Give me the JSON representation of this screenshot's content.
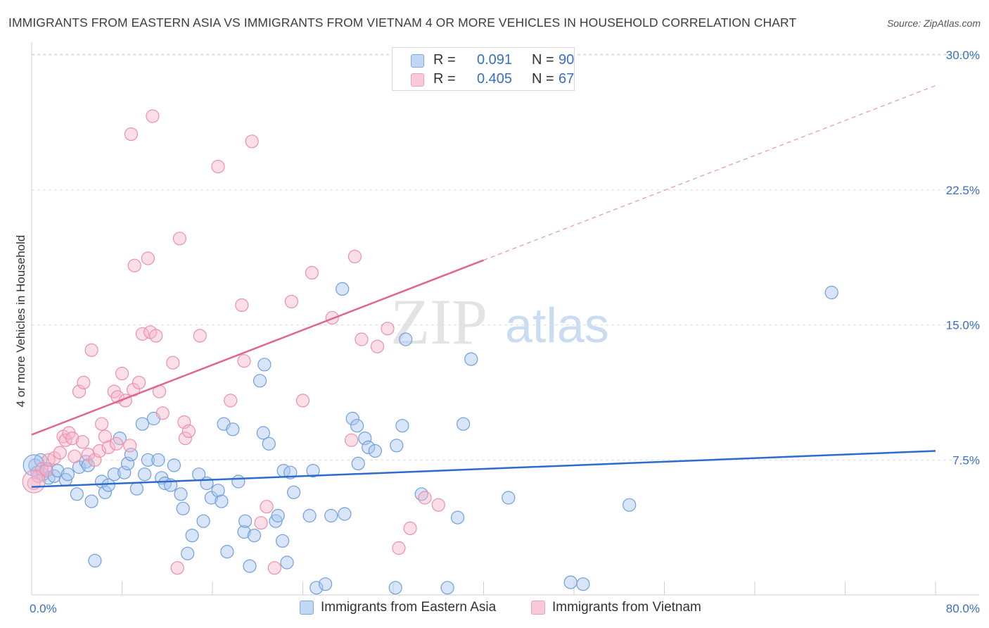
{
  "title": "IMMIGRANTS FROM EASTERN ASIA VS IMMIGRANTS FROM VIETNAM 4 OR MORE VEHICLES IN HOUSEHOLD CORRELATION CHART",
  "source": "Source: ZipAtlas.com",
  "watermark": {
    "zip": "ZIP",
    "atlas": "atlas"
  },
  "legend": {
    "rows": [
      {
        "r_label": "R =",
        "r_value": "0.091",
        "n_label": "N =",
        "n_value": "90",
        "color": "#a9c6f0"
      },
      {
        "r_label": "R =",
        "r_value": "0.405",
        "n_label": "N =",
        "n_value": "67",
        "color": "#f6b6c8"
      }
    ]
  },
  "bottom_legend": [
    {
      "label": "Immigrants from Eastern Asia",
      "color": "#a9c6f0"
    },
    {
      "label": "Immigrants from Vietnam",
      "color": "#f6b6c8"
    }
  ],
  "chart_data": {
    "type": "scatter",
    "title": "IMMIGRANTS FROM EASTERN ASIA VS IMMIGRANTS FROM VIETNAM 4 OR MORE VEHICLES IN HOUSEHOLD CORRELATION CHART",
    "xlabel": "",
    "ylabel": "4 or more Vehicles in Household",
    "xlim": [
      0,
      80
    ],
    "ylim": [
      0,
      30
    ],
    "x_tick_labels": [
      "0.0%",
      "80.0%"
    ],
    "y_tick_labels": [
      "7.5%",
      "15.0%",
      "22.5%",
      "30.0%"
    ],
    "y_ticks": [
      7.5,
      15,
      22.5,
      30
    ],
    "grid": "horizontal dashed",
    "legend_position": "top-center",
    "series": [
      {
        "name": "Immigrants from Eastern Asia",
        "color": "#6f9fe0",
        "fill": "#a9c6f0",
        "trend": {
          "x": [
            0,
            80
          ],
          "y": [
            6.0,
            8.0
          ],
          "color": "#2b6ccc"
        },
        "points": [
          [
            0.3,
            7.2
          ],
          [
            0.5,
            6.8
          ],
          [
            0.8,
            7.5
          ],
          [
            1.0,
            6.7
          ],
          [
            1.3,
            7.0
          ],
          [
            1.5,
            6.5
          ],
          [
            2.0,
            6.6
          ],
          [
            2.3,
            6.9
          ],
          [
            3.0,
            6.4
          ],
          [
            3.2,
            6.7
          ],
          [
            4.0,
            5.6
          ],
          [
            4.2,
            7.1
          ],
          [
            4.8,
            7.4
          ],
          [
            5.0,
            7.2
          ],
          [
            5.3,
            5.2
          ],
          [
            5.6,
            1.9
          ],
          [
            6.2,
            6.3
          ],
          [
            6.5,
            5.7
          ],
          [
            6.8,
            6.1
          ],
          [
            7.3,
            6.7
          ],
          [
            7.8,
            8.7
          ],
          [
            8.2,
            6.8
          ],
          [
            8.5,
            7.3
          ],
          [
            8.8,
            7.8
          ],
          [
            9.3,
            5.9
          ],
          [
            9.8,
            9.5
          ],
          [
            10.0,
            6.7
          ],
          [
            10.3,
            7.5
          ],
          [
            10.8,
            9.8
          ],
          [
            11.2,
            7.5
          ],
          [
            11.5,
            6.5
          ],
          [
            11.8,
            6.2
          ],
          [
            12.3,
            6.1
          ],
          [
            12.6,
            7.2
          ],
          [
            13.2,
            5.6
          ],
          [
            13.4,
            4.8
          ],
          [
            13.8,
            2.3
          ],
          [
            14.2,
            3.3
          ],
          [
            14.8,
            6.7
          ],
          [
            15.2,
            4.1
          ],
          [
            15.5,
            6.2
          ],
          [
            15.9,
            5.4
          ],
          [
            16.5,
            5.8
          ],
          [
            16.8,
            5.2
          ],
          [
            17.0,
            9.5
          ],
          [
            17.3,
            2.4
          ],
          [
            17.8,
            9.2
          ],
          [
            18.3,
            6.3
          ],
          [
            18.8,
            3.5
          ],
          [
            18.9,
            4.1
          ],
          [
            19.3,
            1.6
          ],
          [
            19.7,
            3.3
          ],
          [
            20.2,
            11.9
          ],
          [
            20.5,
            9.0
          ],
          [
            20.6,
            12.8
          ],
          [
            21.0,
            8.4
          ],
          [
            21.6,
            4.1
          ],
          [
            21.8,
            4.4
          ],
          [
            22.2,
            3.0
          ],
          [
            22.3,
            6.9
          ],
          [
            22.6,
            1.8
          ],
          [
            22.9,
            6.8
          ],
          [
            23.2,
            5.7
          ],
          [
            24.6,
            4.4
          ],
          [
            24.9,
            6.9
          ],
          [
            25.2,
            0.4
          ],
          [
            26.0,
            0.6
          ],
          [
            26.5,
            4.4
          ],
          [
            27.5,
            17.0
          ],
          [
            27.7,
            4.5
          ],
          [
            28.4,
            9.8
          ],
          [
            28.8,
            9.4
          ],
          [
            28.9,
            7.3
          ],
          [
            29.5,
            8.7
          ],
          [
            29.8,
            8.2
          ],
          [
            30.4,
            8.0
          ],
          [
            32.2,
            0.4
          ],
          [
            32.3,
            8.3
          ],
          [
            32.8,
            9.4
          ],
          [
            33.1,
            14.2
          ],
          [
            34.5,
            5.6
          ],
          [
            36.8,
            0.4
          ],
          [
            37.7,
            4.3
          ],
          [
            38.2,
            9.5
          ],
          [
            38.9,
            13.1
          ],
          [
            42.2,
            5.4
          ],
          [
            47.7,
            0.7
          ],
          [
            48.8,
            0.6
          ],
          [
            52.9,
            5.0
          ],
          [
            70.8,
            16.8
          ]
        ]
      },
      {
        "name": "Immigrants from Vietnam",
        "color": "#ec8fac",
        "fill": "#f6b6c8",
        "trend": {
          "x": [
            0,
            40
          ],
          "y": [
            8.9,
            18.6
          ],
          "color": "#e0648c"
        },
        "trend_extension": {
          "x": [
            40,
            80
          ],
          "y": [
            18.6,
            28.3
          ]
        },
        "points": [
          [
            0.2,
            6.2
          ],
          [
            0.6,
            6.6
          ],
          [
            0.9,
            7.0
          ],
          [
            1.3,
            6.9
          ],
          [
            1.5,
            7.5
          ],
          [
            2.0,
            7.6
          ],
          [
            2.5,
            7.9
          ],
          [
            2.8,
            8.8
          ],
          [
            3.0,
            8.6
          ],
          [
            3.3,
            9.0
          ],
          [
            3.6,
            8.7
          ],
          [
            3.8,
            7.7
          ],
          [
            4.2,
            11.3
          ],
          [
            4.5,
            8.5
          ],
          [
            4.6,
            11.8
          ],
          [
            5.0,
            7.8
          ],
          [
            5.3,
            13.6
          ],
          [
            5.6,
            7.5
          ],
          [
            6.0,
            8.0
          ],
          [
            6.2,
            9.5
          ],
          [
            6.5,
            8.8
          ],
          [
            6.8,
            8.2
          ],
          [
            7.3,
            11.3
          ],
          [
            7.5,
            8.4
          ],
          [
            7.6,
            11.0
          ],
          [
            8.0,
            12.3
          ],
          [
            8.3,
            10.8
          ],
          [
            8.7,
            8.3
          ],
          [
            8.8,
            25.6
          ],
          [
            9.0,
            11.4
          ],
          [
            9.1,
            18.3
          ],
          [
            9.5,
            11.8
          ],
          [
            9.8,
            14.5
          ],
          [
            10.3,
            18.7
          ],
          [
            10.5,
            14.6
          ],
          [
            10.7,
            26.6
          ],
          [
            11.0,
            14.4
          ],
          [
            11.3,
            11.3
          ],
          [
            11.6,
            10.1
          ],
          [
            12.5,
            12.9
          ],
          [
            12.9,
            1.5
          ],
          [
            13.1,
            19.8
          ],
          [
            13.5,
            9.6
          ],
          [
            13.6,
            8.7
          ],
          [
            13.9,
            9.1
          ],
          [
            14.9,
            14.4
          ],
          [
            16.5,
            23.8
          ],
          [
            17.6,
            10.8
          ],
          [
            18.6,
            16.1
          ],
          [
            18.8,
            13.0
          ],
          [
            19.5,
            25.2
          ],
          [
            20.3,
            4.0
          ],
          [
            20.8,
            4.9
          ],
          [
            21.5,
            1.5
          ],
          [
            23.0,
            16.3
          ],
          [
            24.0,
            10.8
          ],
          [
            24.8,
            17.9
          ],
          [
            26.6,
            15.4
          ],
          [
            28.3,
            8.6
          ],
          [
            28.6,
            18.8
          ],
          [
            29.2,
            14.2
          ],
          [
            30.6,
            13.8
          ],
          [
            31.5,
            14.8
          ],
          [
            32.5,
            2.6
          ],
          [
            33.5,
            3.7
          ],
          [
            34.8,
            5.4
          ],
          [
            36.0,
            5.0
          ]
        ]
      }
    ]
  }
}
